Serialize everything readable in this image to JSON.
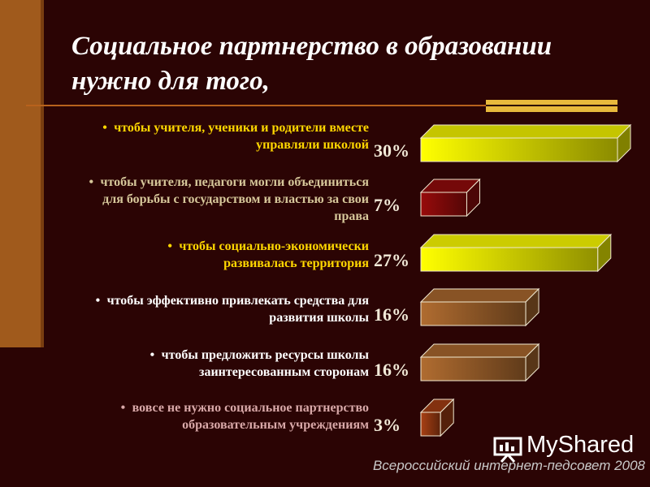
{
  "title": "Социальное партнерство в образовании нужно для того,",
  "items": [
    {
      "text": "чтобы учителя, ученики и родители вместе управляли школой",
      "color": "#ffd700"
    },
    {
      "text": "чтобы учителя, педагоги могли объединиться для борьбы с государством и властью за свои права",
      "color": "#d6c79a"
    },
    {
      "text": "чтобы социально-экономически развивалась территория",
      "color": "#ffd700"
    },
    {
      "text": "чтобы эффективно привлекать средства для развития школы",
      "color": "#ffffff"
    },
    {
      "text": "чтобы предложить ресурсы школы заинтересованным сторонам",
      "color": "#ffffff"
    },
    {
      "text": "вовсе не нужно социальное партнерство образовательным учреждениям",
      "color": "#d8a8a8"
    }
  ],
  "chart_data": {
    "type": "bar",
    "orientation": "horizontal",
    "categories": [
      "чтобы учителя, ученики и родители вместе управляли школой",
      "чтобы учителя, педагоги могли объединиться для борьбы с государством и властью за свои права",
      "чтобы социально-экономически развивалась территория",
      "чтобы эффективно привлекать средства для развития школы",
      "чтобы предложить ресурсы школы заинтересованным сторонам",
      "вовсе не нужно социальное партнерство образовательным учреждениям"
    ],
    "values": [
      30,
      7,
      27,
      16,
      16,
      3
    ],
    "labels": [
      "30%",
      "7%",
      "27%",
      "16%",
      "16%",
      "3%"
    ],
    "bar_colors": [
      "#e8e800",
      "#8a0a0a",
      "#f0f000",
      "#a0622c",
      "#a0622c",
      "#9a3a12"
    ],
    "style": "3d"
  },
  "watermark": "MyShared",
  "footer": "Всероссийский интернет-педсовет 2008",
  "colors": {
    "background": "#2b0404",
    "left_bar": "#a05a1c",
    "accent": "#e8b93c"
  }
}
